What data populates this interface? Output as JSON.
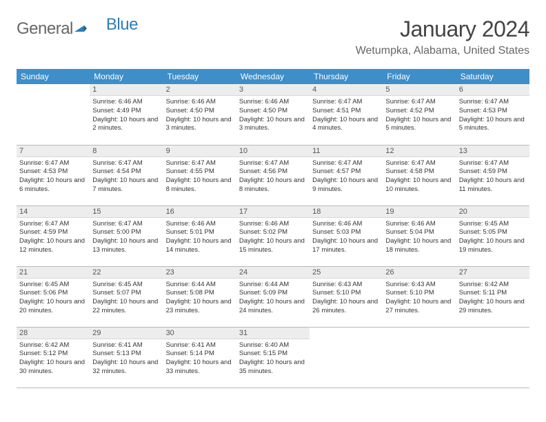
{
  "logo": {
    "first": "General",
    "second": "Blue"
  },
  "header": {
    "title": "January 2024",
    "location": "Wetumpka, Alabama, United States"
  },
  "colors": {
    "header_bg": "#3d8ec9",
    "header_text": "#ffffff",
    "daynum_bg": "#ededed",
    "row_border": "#b8b8b8",
    "logo_blue": "#2c7fb8"
  },
  "columns": [
    "Sunday",
    "Monday",
    "Tuesday",
    "Wednesday",
    "Thursday",
    "Friday",
    "Saturday"
  ],
  "weeks": [
    [
      null,
      {
        "n": "1",
        "sr": "6:46 AM",
        "ss": "4:49 PM",
        "dl": "10 hours and 2 minutes."
      },
      {
        "n": "2",
        "sr": "6:46 AM",
        "ss": "4:50 PM",
        "dl": "10 hours and 3 minutes."
      },
      {
        "n": "3",
        "sr": "6:46 AM",
        "ss": "4:50 PM",
        "dl": "10 hours and 3 minutes."
      },
      {
        "n": "4",
        "sr": "6:47 AM",
        "ss": "4:51 PM",
        "dl": "10 hours and 4 minutes."
      },
      {
        "n": "5",
        "sr": "6:47 AM",
        "ss": "4:52 PM",
        "dl": "10 hours and 5 minutes."
      },
      {
        "n": "6",
        "sr": "6:47 AM",
        "ss": "4:53 PM",
        "dl": "10 hours and 5 minutes."
      }
    ],
    [
      {
        "n": "7",
        "sr": "6:47 AM",
        "ss": "4:53 PM",
        "dl": "10 hours and 6 minutes."
      },
      {
        "n": "8",
        "sr": "6:47 AM",
        "ss": "4:54 PM",
        "dl": "10 hours and 7 minutes."
      },
      {
        "n": "9",
        "sr": "6:47 AM",
        "ss": "4:55 PM",
        "dl": "10 hours and 8 minutes."
      },
      {
        "n": "10",
        "sr": "6:47 AM",
        "ss": "4:56 PM",
        "dl": "10 hours and 8 minutes."
      },
      {
        "n": "11",
        "sr": "6:47 AM",
        "ss": "4:57 PM",
        "dl": "10 hours and 9 minutes."
      },
      {
        "n": "12",
        "sr": "6:47 AM",
        "ss": "4:58 PM",
        "dl": "10 hours and 10 minutes."
      },
      {
        "n": "13",
        "sr": "6:47 AM",
        "ss": "4:59 PM",
        "dl": "10 hours and 11 minutes."
      }
    ],
    [
      {
        "n": "14",
        "sr": "6:47 AM",
        "ss": "4:59 PM",
        "dl": "10 hours and 12 minutes."
      },
      {
        "n": "15",
        "sr": "6:47 AM",
        "ss": "5:00 PM",
        "dl": "10 hours and 13 minutes."
      },
      {
        "n": "16",
        "sr": "6:46 AM",
        "ss": "5:01 PM",
        "dl": "10 hours and 14 minutes."
      },
      {
        "n": "17",
        "sr": "6:46 AM",
        "ss": "5:02 PM",
        "dl": "10 hours and 15 minutes."
      },
      {
        "n": "18",
        "sr": "6:46 AM",
        "ss": "5:03 PM",
        "dl": "10 hours and 17 minutes."
      },
      {
        "n": "19",
        "sr": "6:46 AM",
        "ss": "5:04 PM",
        "dl": "10 hours and 18 minutes."
      },
      {
        "n": "20",
        "sr": "6:45 AM",
        "ss": "5:05 PM",
        "dl": "10 hours and 19 minutes."
      }
    ],
    [
      {
        "n": "21",
        "sr": "6:45 AM",
        "ss": "5:06 PM",
        "dl": "10 hours and 20 minutes."
      },
      {
        "n": "22",
        "sr": "6:45 AM",
        "ss": "5:07 PM",
        "dl": "10 hours and 22 minutes."
      },
      {
        "n": "23",
        "sr": "6:44 AM",
        "ss": "5:08 PM",
        "dl": "10 hours and 23 minutes."
      },
      {
        "n": "24",
        "sr": "6:44 AM",
        "ss": "5:09 PM",
        "dl": "10 hours and 24 minutes."
      },
      {
        "n": "25",
        "sr": "6:43 AM",
        "ss": "5:10 PM",
        "dl": "10 hours and 26 minutes."
      },
      {
        "n": "26",
        "sr": "6:43 AM",
        "ss": "5:10 PM",
        "dl": "10 hours and 27 minutes."
      },
      {
        "n": "27",
        "sr": "6:42 AM",
        "ss": "5:11 PM",
        "dl": "10 hours and 29 minutes."
      }
    ],
    [
      {
        "n": "28",
        "sr": "6:42 AM",
        "ss": "5:12 PM",
        "dl": "10 hours and 30 minutes."
      },
      {
        "n": "29",
        "sr": "6:41 AM",
        "ss": "5:13 PM",
        "dl": "10 hours and 32 minutes."
      },
      {
        "n": "30",
        "sr": "6:41 AM",
        "ss": "5:14 PM",
        "dl": "10 hours and 33 minutes."
      },
      {
        "n": "31",
        "sr": "6:40 AM",
        "ss": "5:15 PM",
        "dl": "10 hours and 35 minutes."
      },
      null,
      null,
      null
    ]
  ],
  "labels": {
    "sunrise": "Sunrise:",
    "sunset": "Sunset:",
    "daylight": "Daylight:"
  }
}
